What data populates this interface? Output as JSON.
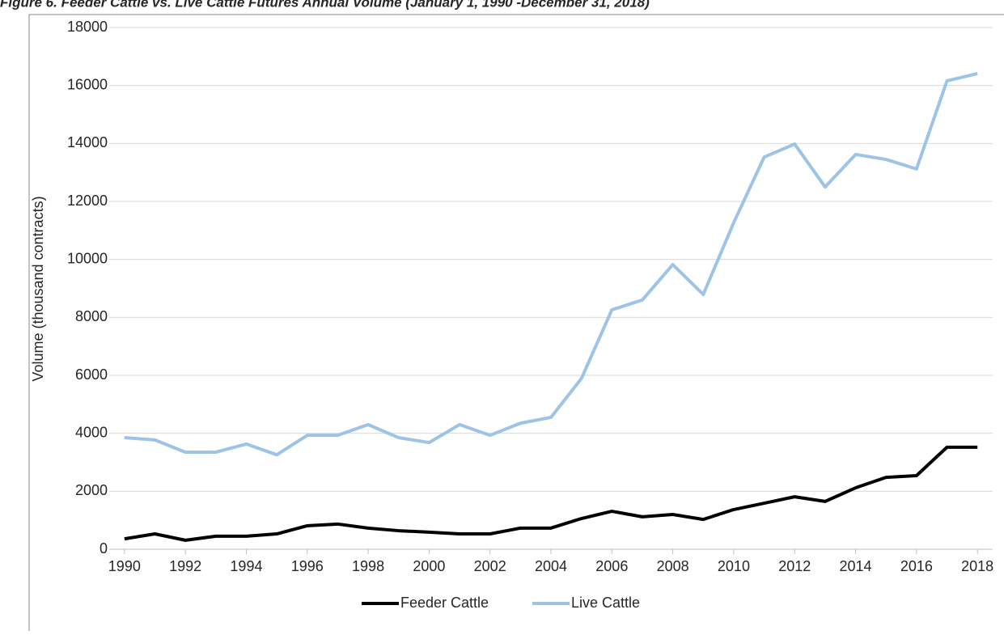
{
  "chart_data": {
    "type": "line",
    "title": "Figure 6. Feeder Cattle vs. Live Cattle Futures Annual Volume (January 1, 1990 -December 31, 2018)",
    "y_label": "Volume (thousand contracts)",
    "x": [
      1990,
      1991,
      1992,
      1993,
      1994,
      1995,
      1996,
      1997,
      1998,
      1999,
      2000,
      2001,
      2002,
      2003,
      2004,
      2005,
      2006,
      2007,
      2008,
      2009,
      2010,
      2011,
      2012,
      2013,
      2014,
      2015,
      2016,
      2017,
      2018
    ],
    "xlim": [
      1989.5,
      2018.5
    ],
    "xticks": [
      1990,
      1992,
      1994,
      1996,
      1998,
      2000,
      2002,
      2004,
      2006,
      2008,
      2010,
      2012,
      2014,
      2016,
      2018
    ],
    "ylim": [
      0,
      18000
    ],
    "yticks": [
      0,
      2000,
      4000,
      6000,
      8000,
      10000,
      12000,
      14000,
      16000,
      18000
    ],
    "grid": true,
    "legend": "bottom",
    "series": [
      {
        "name": "Feeder Cattle",
        "color": "#000000",
        "values": [
          360,
          530,
          310,
          450,
          450,
          530,
          810,
          870,
          730,
          640,
          590,
          530,
          530,
          730,
          730,
          1060,
          1310,
          1120,
          1200,
          1030,
          1370,
          1590,
          1810,
          1650,
          2120,
          2480,
          2540,
          3520,
          3520
        ]
      },
      {
        "name": "Live Cattle",
        "color": "#9dc3e6",
        "values": [
          3850,
          3770,
          3350,
          3350,
          3630,
          3260,
          3930,
          3930,
          4300,
          3850,
          3680,
          4300,
          3930,
          4350,
          4550,
          5890,
          8260,
          8600,
          9820,
          8790,
          11270,
          13530,
          13980,
          12500,
          13620,
          13450,
          13120,
          16160,
          16410
        ]
      }
    ]
  }
}
